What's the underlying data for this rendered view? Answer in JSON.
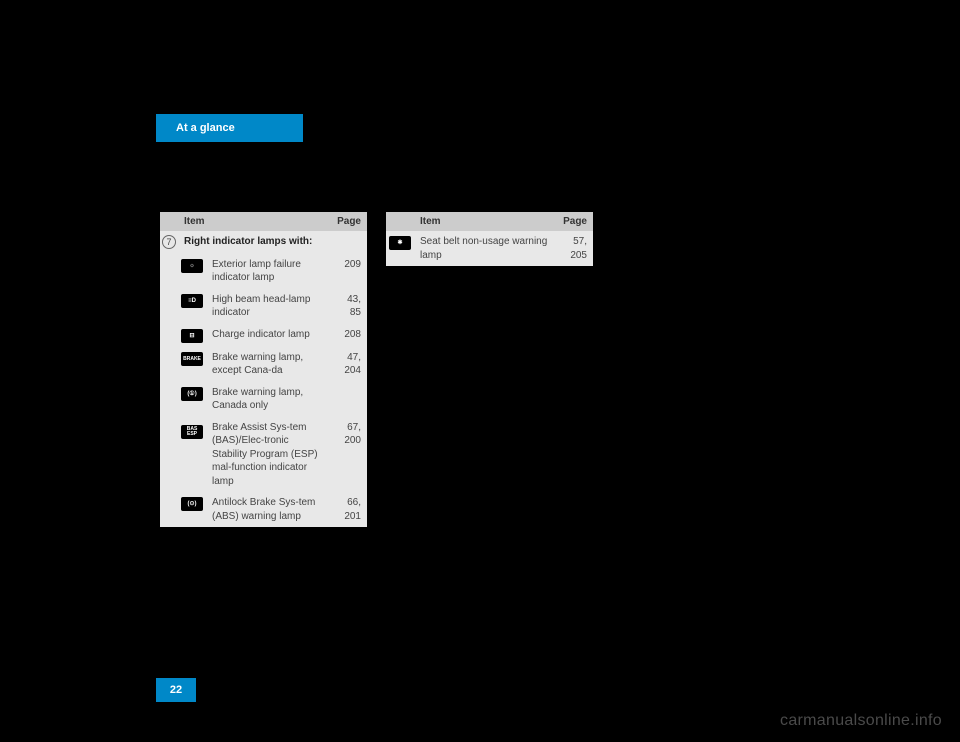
{
  "header": {
    "title": "At a glance"
  },
  "page_number": "22",
  "watermark": "carmanualsonline.info",
  "columns": {
    "item": "Item",
    "page": "Page"
  },
  "section": {
    "num": "7",
    "title": "Right indicator lamps with:"
  },
  "rows_left": [
    {
      "icon_name": "lamp-failure-icon",
      "icon_text": "☼",
      "desc": "Exterior lamp failure indicator lamp",
      "page": "209"
    },
    {
      "icon_name": "high-beam-icon",
      "icon_text": "≡D",
      "desc": "High beam head-lamp indicator",
      "page": "43, 85"
    },
    {
      "icon_name": "battery-icon",
      "icon_text": "⊟",
      "desc": "Charge indicator lamp",
      "page": "208"
    },
    {
      "icon_name": "brake-text-icon",
      "icon_text": "BRAKE",
      "desc": "Brake warning lamp, except Cana-da",
      "page": "47,\n204"
    },
    {
      "icon_name": "brake-canada-icon",
      "icon_text": "(①)",
      "desc": "Brake warning lamp, Canada only",
      "page": ""
    },
    {
      "icon_name": "bas-esp-icon",
      "icon_text": "BAS\nESP",
      "desc": "Brake Assist Sys-tem (BAS)/Elec-tronic Stability Program (ESP) mal-function indicator lamp",
      "page": "67,\n200"
    },
    {
      "icon_name": "abs-icon",
      "icon_text": "(⊙)",
      "desc": "Antilock Brake Sys-tem (ABS) warning lamp",
      "page": "66,\n201"
    }
  ],
  "rows_right": [
    {
      "icon_name": "seatbelt-icon",
      "icon_text": "✱",
      "desc": "Seat belt non-usage warning lamp",
      "page": "57,\n205"
    }
  ]
}
